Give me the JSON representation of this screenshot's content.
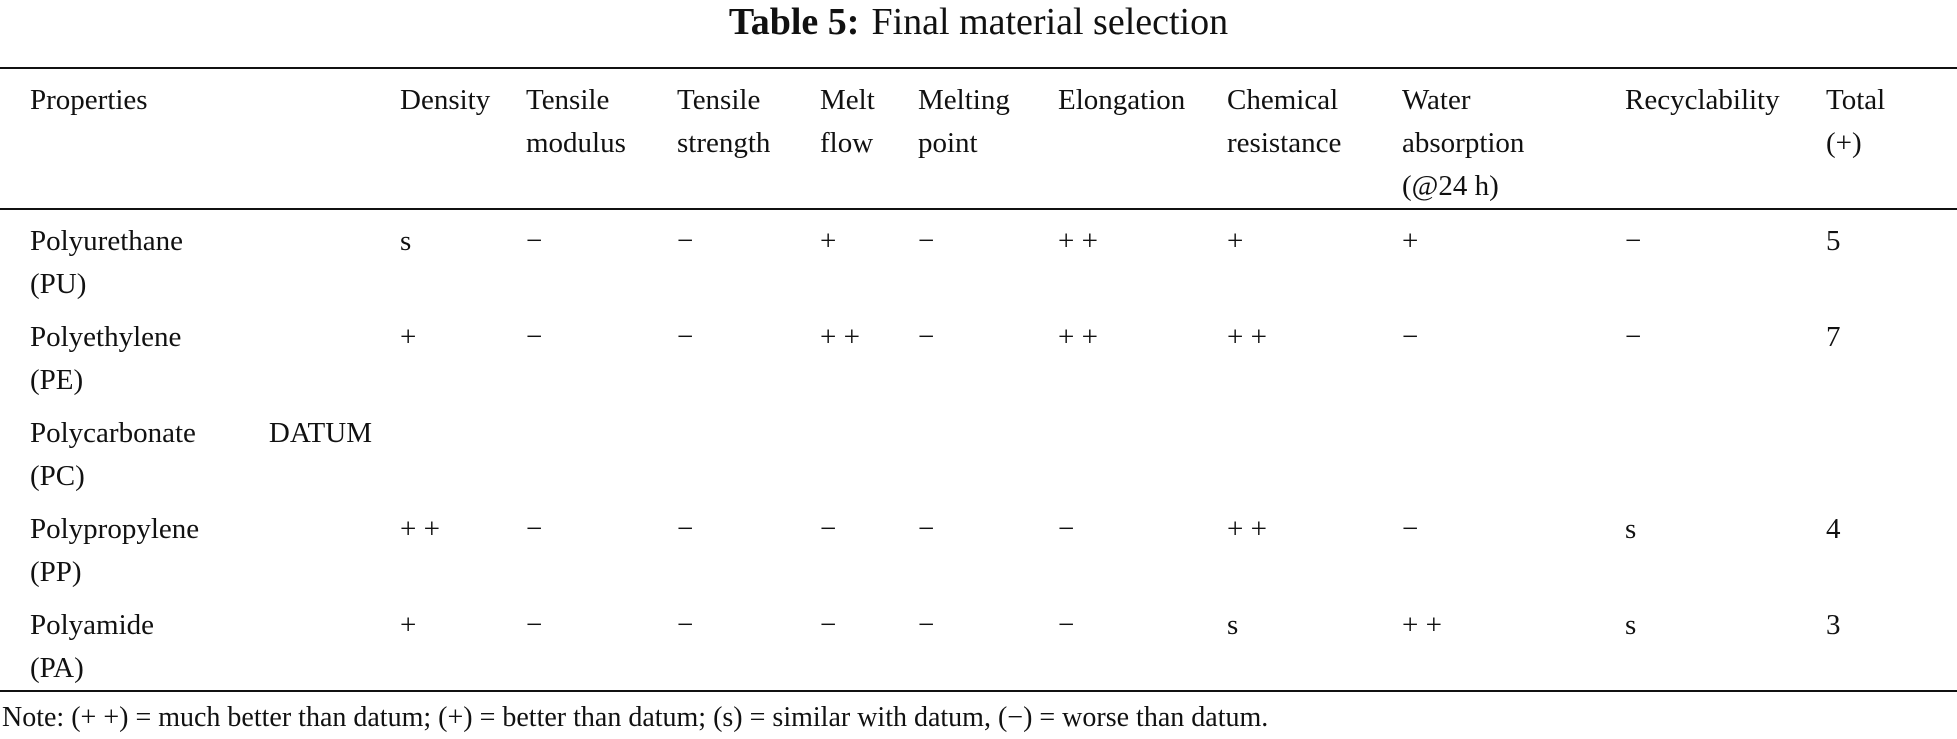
{
  "title": {
    "label": "Table 5:",
    "text": "Final material selection"
  },
  "table": {
    "headers": [
      [
        "Properties"
      ],
      [
        "Density"
      ],
      [
        "Tensile",
        "modulus"
      ],
      [
        "Tensile",
        "strength"
      ],
      [
        "Melt",
        "flow"
      ],
      [
        "Melting",
        "point"
      ],
      [
        "Elongation"
      ],
      [
        "Chemical",
        "resistance"
      ],
      [
        "Water",
        "absorption",
        "(@24 h)"
      ],
      [
        "Recyclability"
      ],
      [
        "Total",
        "(+)"
      ]
    ],
    "rows": [
      {
        "material": [
          "Polyurethane",
          "(PU)"
        ],
        "datum": "",
        "values": [
          "s",
          "−",
          "−",
          "+",
          "−",
          "+ +",
          "+",
          "+",
          "−",
          "5"
        ]
      },
      {
        "material": [
          "Polyethylene",
          "(PE)"
        ],
        "datum": "",
        "values": [
          "+",
          "−",
          "−",
          "+ +",
          "−",
          "+ +",
          "+ +",
          "−",
          "−",
          "7"
        ]
      },
      {
        "material": [
          "Polycarbonate",
          "(PC)"
        ],
        "datum": "DATUM",
        "values": [
          "",
          "",
          "",
          "",
          "",
          "",
          "",
          "",
          "",
          ""
        ]
      },
      {
        "material": [
          "Polypropylene",
          "(PP)"
        ],
        "datum": "",
        "values": [
          "+ +",
          "−",
          "−",
          "−",
          "−",
          "−",
          "+ +",
          "−",
          "s",
          "4"
        ]
      },
      {
        "material": [
          "Polyamide",
          "(PA)"
        ],
        "datum": "",
        "values": [
          "+",
          "−",
          "−",
          "−",
          "−",
          "−",
          "s",
          "+ +",
          "s",
          "3"
        ]
      }
    ]
  },
  "note": "Note: (+ +) = much better than datum; (+) = better than datum; (s) = similar with datum, (−) = worse than datum."
}
